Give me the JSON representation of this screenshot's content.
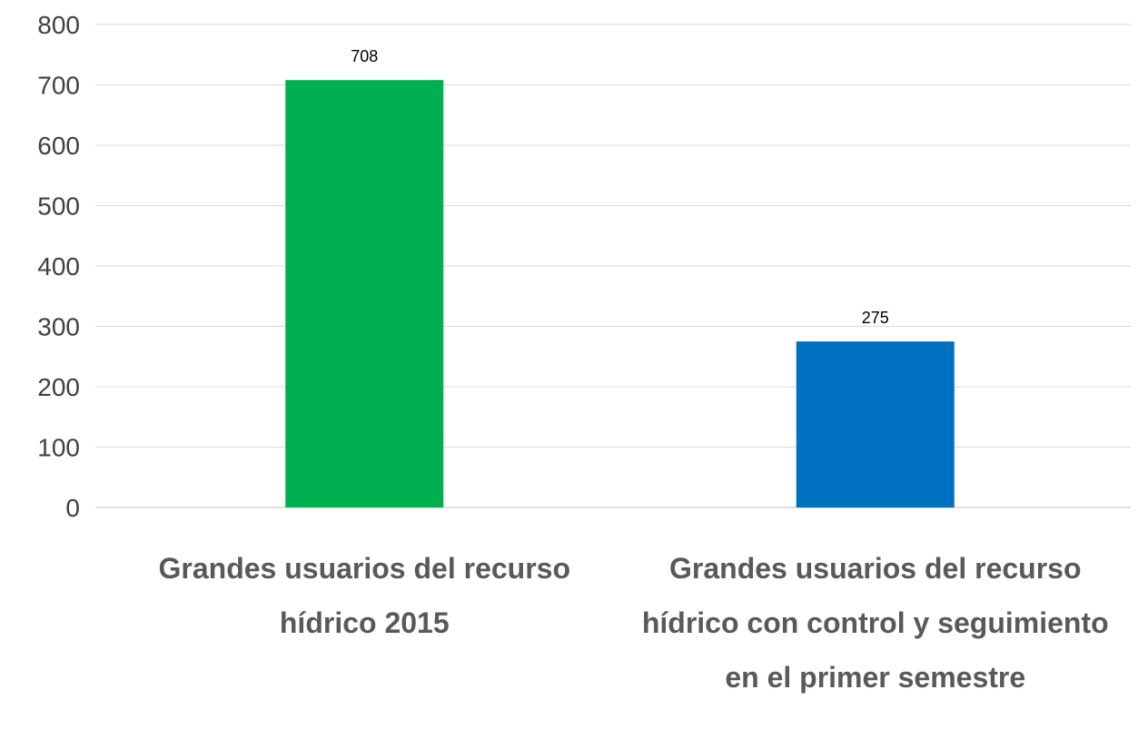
{
  "chart_data": {
    "type": "bar",
    "categories": [
      "Grandes usuarios del recurso hídrico 2015",
      "Grandes usuarios del recurso hídrico con control y seguimiento en el primer semestre"
    ],
    "values": [
      708,
      275
    ],
    "colors": [
      "#00b050",
      "#0070c0"
    ],
    "ylim": [
      0,
      800
    ],
    "yticks": [
      0,
      100,
      200,
      300,
      400,
      500,
      600,
      700,
      800
    ],
    "grid": true
  }
}
